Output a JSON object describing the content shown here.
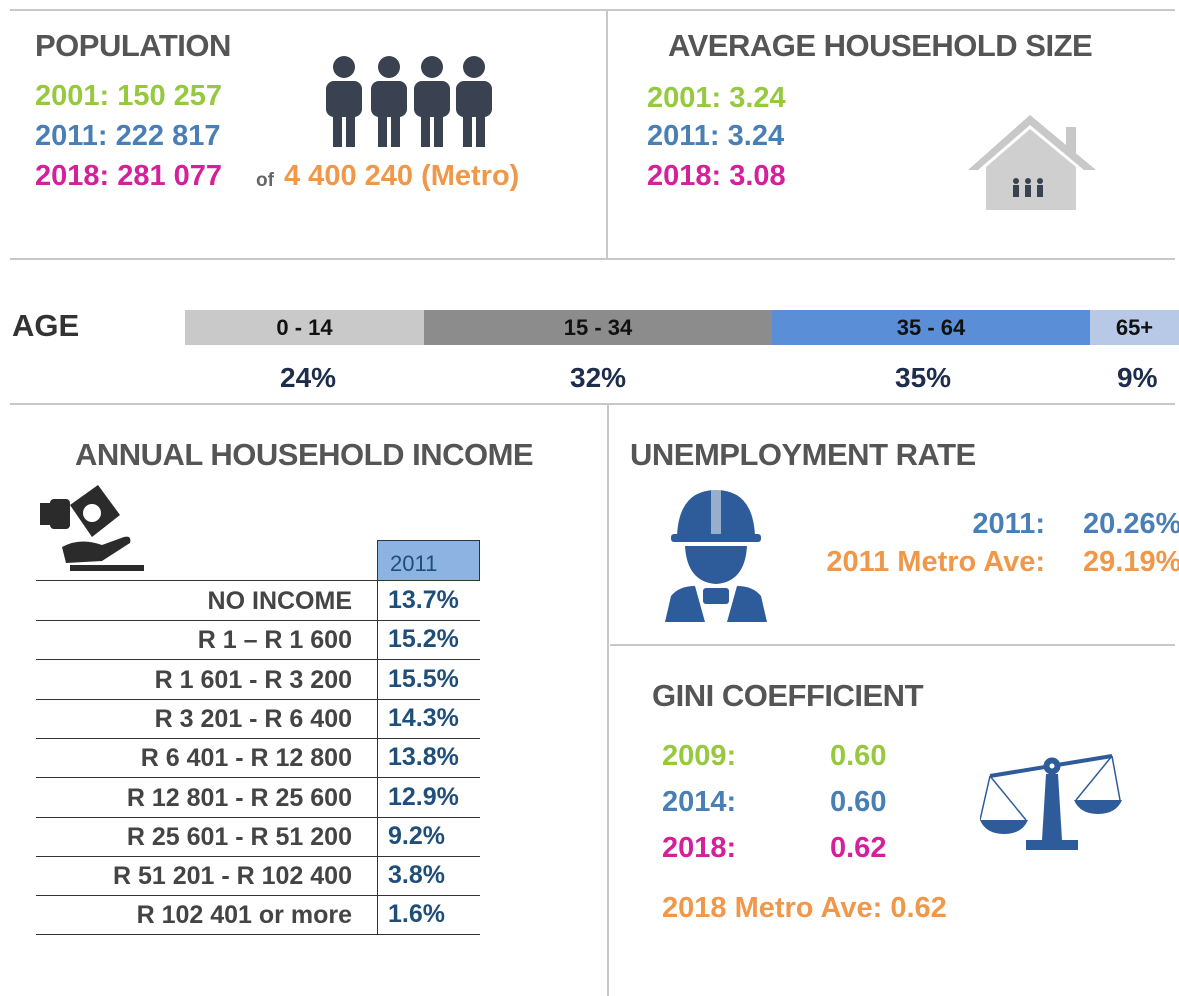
{
  "population": {
    "title": "POPULATION",
    "rows": [
      "2001: 150 257",
      "2011: 222 817",
      "2018: 281 077"
    ],
    "of": "of",
    "metro": "4 400 240 (Metro)"
  },
  "household_size": {
    "title": "AVERAGE HOUSEHOLD SIZE",
    "rows": [
      "2001: 3.24",
      "2011: 3.24",
      "2018: 3.08"
    ]
  },
  "age": {
    "title": "AGE",
    "groups": [
      {
        "label": "0 - 14",
        "value": "24%"
      },
      {
        "label": "15 - 34",
        "value": "32%"
      },
      {
        "label": "35 - 64",
        "value": "35%"
      },
      {
        "label": "65+",
        "value": "9%"
      }
    ]
  },
  "income": {
    "title": "ANNUAL HOUSEHOLD INCOME",
    "header": "2011",
    "rows": [
      [
        "NO INCOME",
        "13.7%"
      ],
      [
        "R 1 – R 1 600",
        "15.2%"
      ],
      [
        "R 1 601 - R 3 200",
        "15.5%"
      ],
      [
        "R 3 201 - R 6 400",
        "14.3%"
      ],
      [
        "R 6 401 - R 12 800",
        "13.8%"
      ],
      [
        "R 12 801 - R 25 600",
        "12.9%"
      ],
      [
        "R 25 601 - R 51 200",
        "9.2%"
      ],
      [
        "R 51 201 - R 102 400",
        "3.8%"
      ],
      [
        "R 102 401 or more",
        "1.6%"
      ]
    ]
  },
  "unemployment": {
    "title": "UNEMPLOYMENT RATE",
    "rows": [
      [
        "2011:",
        "20.26%"
      ],
      [
        "2011 Metro Ave:",
        "29.19%"
      ]
    ]
  },
  "gini": {
    "title": "GINI COEFFICIENT",
    "rows": [
      [
        "2009:",
        "0.60"
      ],
      [
        "2014:",
        "0.60"
      ],
      [
        "2018:",
        "0.62"
      ]
    ],
    "metro": "2018 Metro Ave: 0.62"
  }
}
